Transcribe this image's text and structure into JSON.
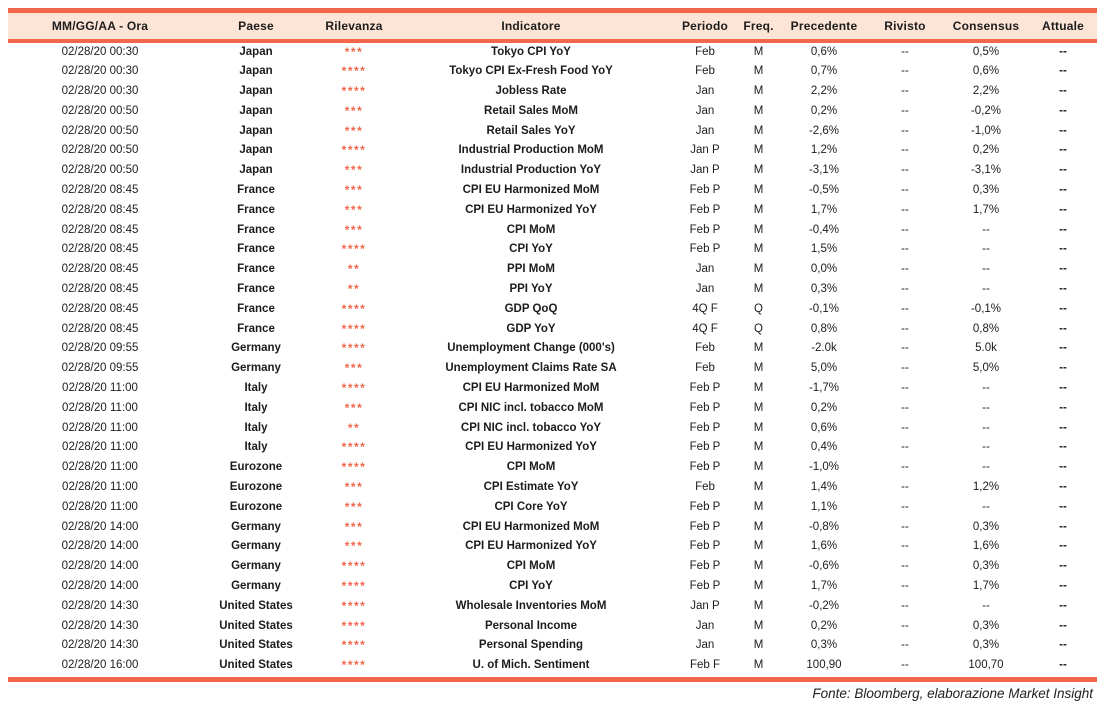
{
  "colors": {
    "accent": "#f2664c",
    "header_bg": "#fce4d6",
    "text": "#1c1c1c"
  },
  "table": {
    "headers": {
      "datetime": "MM/GG/AA - Ora",
      "country": "Paese",
      "relevance": "Rilevanza",
      "indicator": "Indicatore",
      "period": "Periodo",
      "freq": "Freq.",
      "previous": "Precedente",
      "revised": "Rivisto",
      "consensus": "Consensus",
      "actual": "Attuale"
    },
    "rows": [
      {
        "datetime": "02/28/20 00:30",
        "country": "Japan",
        "relevance": "***",
        "indicator": "Tokyo CPI YoY",
        "period": "Feb",
        "freq": "M",
        "previous": "0,6%",
        "revised": "--",
        "consensus": "0,5%",
        "actual": "--"
      },
      {
        "datetime": "02/28/20 00:30",
        "country": "Japan",
        "relevance": "****",
        "indicator": "Tokyo CPI Ex-Fresh Food YoY",
        "period": "Feb",
        "freq": "M",
        "previous": "0,7%",
        "revised": "--",
        "consensus": "0,6%",
        "actual": "--"
      },
      {
        "datetime": "02/28/20 00:30",
        "country": "Japan",
        "relevance": "****",
        "indicator": "Jobless Rate",
        "period": "Jan",
        "freq": "M",
        "previous": "2,2%",
        "revised": "--",
        "consensus": "2,2%",
        "actual": "--"
      },
      {
        "datetime": "02/28/20 00:50",
        "country": "Japan",
        "relevance": "***",
        "indicator": "Retail Sales MoM",
        "period": "Jan",
        "freq": "M",
        "previous": "0,2%",
        "revised": "--",
        "consensus": "-0,2%",
        "actual": "--"
      },
      {
        "datetime": "02/28/20 00:50",
        "country": "Japan",
        "relevance": "***",
        "indicator": "Retail Sales YoY",
        "period": "Jan",
        "freq": "M",
        "previous": "-2,6%",
        "revised": "--",
        "consensus": "-1,0%",
        "actual": "--"
      },
      {
        "datetime": "02/28/20 00:50",
        "country": "Japan",
        "relevance": "****",
        "indicator": "Industrial Production MoM",
        "period": "Jan P",
        "freq": "M",
        "previous": "1,2%",
        "revised": "--",
        "consensus": "0,2%",
        "actual": "--"
      },
      {
        "datetime": "02/28/20 00:50",
        "country": "Japan",
        "relevance": "***",
        "indicator": "Industrial Production YoY",
        "period": "Jan P",
        "freq": "M",
        "previous": "-3,1%",
        "revised": "--",
        "consensus": "-3,1%",
        "actual": "--"
      },
      {
        "datetime": "02/28/20 08:45",
        "country": "France",
        "relevance": "***",
        "indicator": "CPI EU Harmonized MoM",
        "period": "Feb P",
        "freq": "M",
        "previous": "-0,5%",
        "revised": "--",
        "consensus": "0,3%",
        "actual": "--"
      },
      {
        "datetime": "02/28/20 08:45",
        "country": "France",
        "relevance": "***",
        "indicator": "CPI EU Harmonized YoY",
        "period": "Feb P",
        "freq": "M",
        "previous": "1,7%",
        "revised": "--",
        "consensus": "1,7%",
        "actual": "--"
      },
      {
        "datetime": "02/28/20 08:45",
        "country": "France",
        "relevance": "***",
        "indicator": "CPI MoM",
        "period": "Feb P",
        "freq": "M",
        "previous": "-0,4%",
        "revised": "--",
        "consensus": "--",
        "actual": "--"
      },
      {
        "datetime": "02/28/20 08:45",
        "country": "France",
        "relevance": "****",
        "indicator": "CPI YoY",
        "period": "Feb P",
        "freq": "M",
        "previous": "1,5%",
        "revised": "--",
        "consensus": "--",
        "actual": "--"
      },
      {
        "datetime": "02/28/20 08:45",
        "country": "France",
        "relevance": "**",
        "indicator": "PPI MoM",
        "period": "Jan",
        "freq": "M",
        "previous": "0,0%",
        "revised": "--",
        "consensus": "--",
        "actual": "--"
      },
      {
        "datetime": "02/28/20 08:45",
        "country": "France",
        "relevance": "**",
        "indicator": "PPI YoY",
        "period": "Jan",
        "freq": "M",
        "previous": "0,3%",
        "revised": "--",
        "consensus": "--",
        "actual": "--"
      },
      {
        "datetime": "02/28/20 08:45",
        "country": "France",
        "relevance": "****",
        "indicator": "GDP QoQ",
        "period": "4Q F",
        "freq": "Q",
        "previous": "-0,1%",
        "revised": "--",
        "consensus": "-0,1%",
        "actual": "--"
      },
      {
        "datetime": "02/28/20 08:45",
        "country": "France",
        "relevance": "****",
        "indicator": "GDP YoY",
        "period": "4Q F",
        "freq": "Q",
        "previous": "0,8%",
        "revised": "--",
        "consensus": "0,8%",
        "actual": "--"
      },
      {
        "datetime": "02/28/20 09:55",
        "country": "Germany",
        "relevance": "****",
        "indicator": "Unemployment Change (000's)",
        "period": "Feb",
        "freq": "M",
        "previous": "-2.0k",
        "revised": "--",
        "consensus": "5.0k",
        "actual": "--"
      },
      {
        "datetime": "02/28/20 09:55",
        "country": "Germany",
        "relevance": "***",
        "indicator": "Unemployment Claims Rate SA",
        "period": "Feb",
        "freq": "M",
        "previous": "5,0%",
        "revised": "--",
        "consensus": "5,0%",
        "actual": "--"
      },
      {
        "datetime": "02/28/20 11:00",
        "country": "Italy",
        "relevance": "****",
        "indicator": "CPI EU Harmonized MoM",
        "period": "Feb P",
        "freq": "M",
        "previous": "-1,7%",
        "revised": "--",
        "consensus": "--",
        "actual": "--"
      },
      {
        "datetime": "02/28/20 11:00",
        "country": "Italy",
        "relevance": "***",
        "indicator": "CPI NIC incl. tobacco MoM",
        "period": "Feb P",
        "freq": "M",
        "previous": "0,2%",
        "revised": "--",
        "consensus": "--",
        "actual": "--"
      },
      {
        "datetime": "02/28/20 11:00",
        "country": "Italy",
        "relevance": "**",
        "indicator": "CPI NIC incl. tobacco YoY",
        "period": "Feb P",
        "freq": "M",
        "previous": "0,6%",
        "revised": "--",
        "consensus": "--",
        "actual": "--"
      },
      {
        "datetime": "02/28/20 11:00",
        "country": "Italy",
        "relevance": "****",
        "indicator": "CPI EU Harmonized YoY",
        "period": "Feb P",
        "freq": "M",
        "previous": "0,4%",
        "revised": "--",
        "consensus": "--",
        "actual": "--"
      },
      {
        "datetime": "02/28/20 11:00",
        "country": "Eurozone",
        "relevance": "****",
        "indicator": "CPI MoM",
        "period": "Feb P",
        "freq": "M",
        "previous": "-1,0%",
        "revised": "--",
        "consensus": "--",
        "actual": "--"
      },
      {
        "datetime": "02/28/20 11:00",
        "country": "Eurozone",
        "relevance": "***",
        "indicator": "CPI Estimate YoY",
        "period": "Feb",
        "freq": "M",
        "previous": "1,4%",
        "revised": "--",
        "consensus": "1,2%",
        "actual": "--"
      },
      {
        "datetime": "02/28/20 11:00",
        "country": "Eurozone",
        "relevance": "***",
        "indicator": "CPI Core YoY",
        "period": "Feb P",
        "freq": "M",
        "previous": "1,1%",
        "revised": "--",
        "consensus": "--",
        "actual": "--"
      },
      {
        "datetime": "02/28/20 14:00",
        "country": "Germany",
        "relevance": "***",
        "indicator": "CPI EU Harmonized MoM",
        "period": "Feb P",
        "freq": "M",
        "previous": "-0,8%",
        "revised": "--",
        "consensus": "0,3%",
        "actual": "--"
      },
      {
        "datetime": "02/28/20 14:00",
        "country": "Germany",
        "relevance": "***",
        "indicator": "CPI EU Harmonized YoY",
        "period": "Feb P",
        "freq": "M",
        "previous": "1,6%",
        "revised": "--",
        "consensus": "1,6%",
        "actual": "--"
      },
      {
        "datetime": "02/28/20 14:00",
        "country": "Germany",
        "relevance": "****",
        "indicator": "CPI MoM",
        "period": "Feb P",
        "freq": "M",
        "previous": "-0,6%",
        "revised": "--",
        "consensus": "0,3%",
        "actual": "--"
      },
      {
        "datetime": "02/28/20 14:00",
        "country": "Germany",
        "relevance": "****",
        "indicator": "CPI YoY",
        "period": "Feb P",
        "freq": "M",
        "previous": "1,7%",
        "revised": "--",
        "consensus": "1,7%",
        "actual": "--"
      },
      {
        "datetime": "02/28/20 14:30",
        "country": "United States",
        "relevance": "****",
        "indicator": "Wholesale Inventories MoM",
        "period": "Jan P",
        "freq": "M",
        "previous": "-0,2%",
        "revised": "--",
        "consensus": "--",
        "actual": "--"
      },
      {
        "datetime": "02/28/20 14:30",
        "country": "United States",
        "relevance": "****",
        "indicator": "Personal Income",
        "period": "Jan",
        "freq": "M",
        "previous": "0,2%",
        "revised": "--",
        "consensus": "0,3%",
        "actual": "--"
      },
      {
        "datetime": "02/28/20 14:30",
        "country": "United States",
        "relevance": "****",
        "indicator": "Personal Spending",
        "period": "Jan",
        "freq": "M",
        "previous": "0,3%",
        "revised": "--",
        "consensus": "0,3%",
        "actual": "--"
      },
      {
        "datetime": "02/28/20 16:00",
        "country": "United States",
        "relevance": "****",
        "indicator": "U. of Mich. Sentiment",
        "period": "Feb F",
        "freq": "M",
        "previous": "100,90",
        "revised": "--",
        "consensus": "100,70",
        "actual": "--"
      }
    ]
  },
  "footer": {
    "source_note": "Fonte: Bloomberg, elaborazione Market Insight"
  }
}
